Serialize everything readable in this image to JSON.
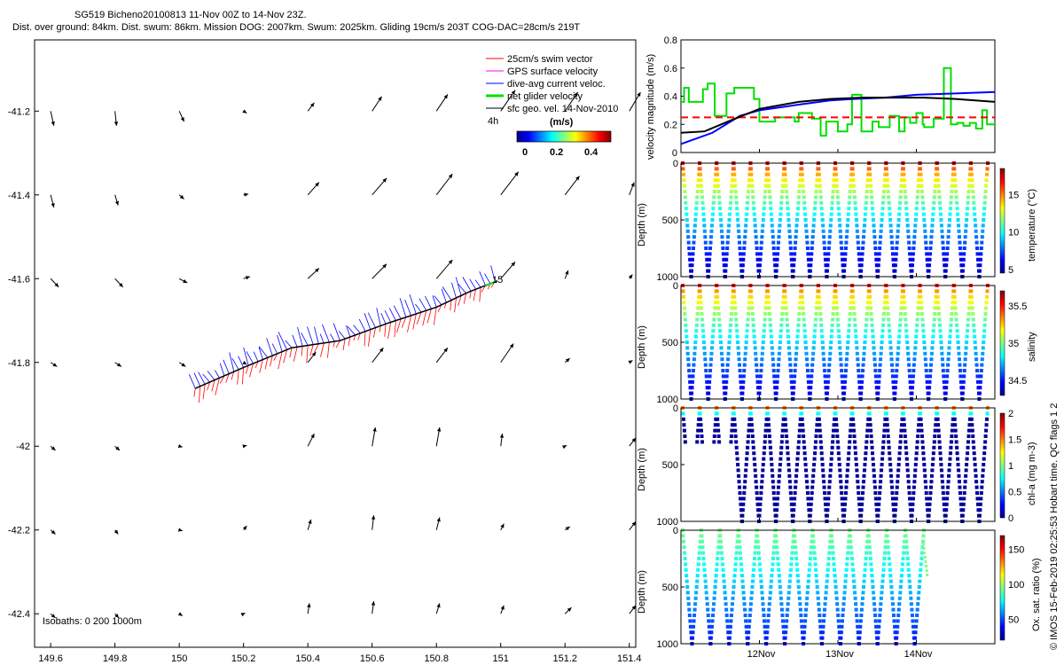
{
  "title_line1": "SG519 Bicheno20100813 11-Nov 00Z to 14-Nov 23Z.",
  "title_line2": "Dist. over ground: 84km. Dist. swum: 86km. Mission DOG: 2007km. Swum: 2025km. Gliding 19cm/s 203T COG-DAC=28cm/s 219T",
  "copyright": "© IMOS 15-Feb-2019 02:25:53 Hobart time. QC flags 1  2",
  "colors": {
    "swim": "#ff0000",
    "gps": "#ff00ff",
    "dac": "#0000ff",
    "net": "#00e000",
    "geo": "#000000"
  },
  "chart_data": [
    {
      "type": "scatter",
      "name": "map",
      "x_ticks": [
        "149.6",
        "149.8",
        "150",
        "150.2",
        "150.4",
        "150.6",
        "150.8",
        "151",
        "151.2",
        "151.4"
      ],
      "y_ticks": [
        "-41.2",
        "-41.4",
        "-41.6",
        "-41.8",
        "-42",
        "-42.2",
        "-42.4"
      ],
      "xlim": [
        149.55,
        151.42
      ],
      "ylim": [
        -42.48,
        -41.03
      ],
      "legend": [
        "25cm/s swim vector",
        "GPS surface velocity",
        "dive-avg current veloc.",
        "net glider velocity",
        "sfc geo. vel. 14-Nov-2010"
      ],
      "legend_time": "4h",
      "colorbar_label": "(m/s)",
      "colorbar_ticks": [
        "0",
        "0.2",
        "0.4"
      ],
      "isobaths_label": "Isobaths: 0   200  1000m",
      "end_label": "15",
      "track": [
        [
          150.05,
          -41.862
        ],
        [
          150.2,
          -41.812
        ],
        [
          150.35,
          -41.765
        ],
        [
          150.5,
          -41.748
        ],
        [
          150.65,
          -41.706
        ],
        [
          150.8,
          -41.668
        ],
        [
          150.9,
          -41.632
        ],
        [
          150.99,
          -41.605
        ]
      ],
      "geo_vectors": [
        [
          149.6,
          -41.2,
          0.01,
          -0.035
        ],
        [
          149.8,
          -41.2,
          0.005,
          -0.035
        ],
        [
          150,
          -41.2,
          0.015,
          -0.025
        ],
        [
          150.2,
          -41.2,
          0.01,
          -0.005
        ],
        [
          150.4,
          -41.2,
          0.02,
          0.02
        ],
        [
          150.6,
          -41.2,
          0.03,
          0.035
        ],
        [
          150.8,
          -41.2,
          0.035,
          0.04
        ],
        [
          151,
          -41.2,
          0.045,
          0.05
        ],
        [
          151.2,
          -41.2,
          0.04,
          0.045
        ],
        [
          151.4,
          -41.2,
          0.035,
          0.045
        ],
        [
          149.6,
          -41.4,
          0.01,
          -0.03
        ],
        [
          149.8,
          -41.4,
          0.01,
          -0.025
        ],
        [
          150,
          -41.4,
          0.015,
          -0.01
        ],
        [
          150.2,
          -41.4,
          0.015,
          0.002
        ],
        [
          150.4,
          -41.4,
          0.035,
          0.03
        ],
        [
          150.6,
          -41.4,
          0.045,
          0.04
        ],
        [
          150.8,
          -41.4,
          0.05,
          0.05
        ],
        [
          151,
          -41.4,
          0.055,
          0.055
        ],
        [
          151.2,
          -41.4,
          0.045,
          0.045
        ],
        [
          151.4,
          -41.4,
          0.015,
          0.03
        ],
        [
          149.6,
          -41.6,
          0.025,
          -0.02
        ],
        [
          149.8,
          -41.6,
          0.025,
          -0.02
        ],
        [
          150,
          -41.6,
          0.025,
          -0.01
        ],
        [
          150.2,
          -41.6,
          0.02,
          0.005
        ],
        [
          150.4,
          -41.6,
          0.035,
          0.025
        ],
        [
          150.6,
          -41.6,
          0.045,
          0.035
        ],
        [
          150.8,
          -41.6,
          0.05,
          0.045
        ],
        [
          151,
          -41.6,
          0.045,
          0.04
        ],
        [
          151.2,
          -41.6,
          0.01,
          0.02
        ],
        [
          151.4,
          -41.6,
          0.01,
          0.01
        ],
        [
          149.6,
          -41.8,
          0.02,
          -0.01
        ],
        [
          149.8,
          -41.8,
          0.02,
          -0.01
        ],
        [
          150,
          -41.8,
          0.02,
          -0.01
        ],
        [
          150.2,
          -41.8,
          0.01,
          -0.005
        ],
        [
          150.4,
          -41.8,
          0.025,
          0.025
        ],
        [
          150.6,
          -41.8,
          0.035,
          0.035
        ],
        [
          150.8,
          -41.8,
          0.035,
          0.035
        ],
        [
          151,
          -41.8,
          0.04,
          0.045
        ],
        [
          151.2,
          -41.8,
          0.015,
          0.01
        ],
        [
          151.4,
          -41.8,
          0.01,
          0.005
        ],
        [
          149.6,
          -42.0,
          0.015,
          -0.01
        ],
        [
          149.8,
          -42.0,
          0.015,
          -0.01
        ],
        [
          150,
          -42.0,
          0.01,
          -0.002
        ],
        [
          150.2,
          -42.0,
          0.01,
          0.002
        ],
        [
          150.4,
          -42.0,
          0.02,
          0.03
        ],
        [
          150.6,
          -42.0,
          0.01,
          0.045
        ],
        [
          150.8,
          -42.0,
          0.01,
          0.045
        ],
        [
          151,
          -42.0,
          0.005,
          0.03
        ],
        [
          151.2,
          -42.0,
          0.005,
          0.002
        ],
        [
          151.4,
          -42.0,
          0.02,
          0.02
        ],
        [
          149.6,
          -42.2,
          0.015,
          -0.01
        ],
        [
          149.8,
          -42.2,
          0.01,
          -0.01
        ],
        [
          150,
          -42.2,
          0.01,
          -0.002
        ],
        [
          150.2,
          -42.2,
          0.01,
          0.01
        ],
        [
          150.4,
          -42.2,
          0.01,
          0.025
        ],
        [
          150.6,
          -42.2,
          0.005,
          0.035
        ],
        [
          150.8,
          -42.2,
          0.01,
          0.03
        ],
        [
          151,
          -42.2,
          0.01,
          0.015
        ],
        [
          151.2,
          -42.2,
          0.015,
          0.008
        ],
        [
          151.4,
          -42.2,
          0.02,
          0.02
        ],
        [
          149.6,
          -42.4,
          0.015,
          -0.01
        ],
        [
          149.8,
          -42.4,
          0.012,
          -0.01
        ],
        [
          150,
          -42.4,
          0.01,
          -0.005
        ],
        [
          150.2,
          -42.4,
          0.005,
          0.002
        ],
        [
          150.4,
          -42.4,
          0.005,
          0.025
        ],
        [
          150.6,
          -42.4,
          0.005,
          0.03
        ],
        [
          150.8,
          -42.4,
          0.01,
          0.025
        ],
        [
          151,
          -42.4,
          0.01,
          0.02
        ],
        [
          151.2,
          -42.4,
          0.02,
          0.015
        ],
        [
          151.4,
          -42.4,
          0.02,
          0.02
        ]
      ]
    },
    {
      "type": "line",
      "name": "velocity",
      "ylabel": "velocity magnitude (m/s)",
      "ylim": [
        0,
        0.8
      ],
      "y_ticks": [
        "0",
        "0.2",
        "0.4",
        "0.6",
        "0.8"
      ],
      "xlim": [
        11,
        15
      ],
      "series": [
        {
          "color": "#00e000",
          "x": [
            11,
            11.04,
            11.04,
            11.1,
            11.1,
            11.28,
            11.28,
            11.34,
            11.34,
            11.43,
            11.43,
            11.58,
            11.58,
            11.68,
            11.68,
            11.93,
            11.93,
            12.0,
            12.0,
            12.2,
            12.2,
            12.45,
            12.45,
            12.5,
            12.5,
            12.67,
            12.67,
            12.78,
            12.78,
            12.85,
            12.85,
            13.0,
            13.0,
            13.12,
            13.12,
            13.18,
            13.18,
            13.3,
            13.3,
            13.44,
            13.44,
            13.52,
            13.52,
            13.66,
            13.66,
            13.78,
            13.78,
            13.85,
            13.85,
            13.92,
            13.92,
            14.0,
            14.0,
            14.08,
            14.08,
            14.1,
            14.1,
            14.22,
            14.22,
            14.35,
            14.35,
            14.44,
            14.44,
            14.52,
            14.52,
            14.6,
            14.6,
            14.68,
            14.68,
            14.76,
            14.76,
            14.84,
            14.84,
            14.9,
            14.9,
            15.0
          ],
          "values": [
            0.36,
            0.36,
            0.46,
            0.46,
            0.36,
            0.36,
            0.45,
            0.45,
            0.49,
            0.49,
            0.26,
            0.26,
            0.42,
            0.42,
            0.46,
            0.46,
            0.38,
            0.38,
            0.22,
            0.22,
            0.25,
            0.25,
            0.22,
            0.22,
            0.28,
            0.28,
            0.24,
            0.24,
            0.12,
            0.12,
            0.22,
            0.22,
            0.15,
            0.15,
            0.2,
            0.2,
            0.41,
            0.41,
            0.15,
            0.15,
            0.22,
            0.22,
            0.18,
            0.18,
            0.26,
            0.26,
            0.15,
            0.15,
            0.25,
            0.25,
            0.21,
            0.21,
            0.28,
            0.28,
            0.2,
            0.2,
            0.18,
            0.18,
            0.24,
            0.24,
            0.6,
            0.6,
            0.2,
            0.2,
            0.21,
            0.21,
            0.19,
            0.19,
            0.21,
            0.21,
            0.17,
            0.17,
            0.3,
            0.3,
            0.2,
            0.2
          ]
        },
        {
          "color": "#ff0000",
          "dashed": true,
          "x": [
            11,
            15
          ],
          "values": [
            0.25,
            0.25
          ]
        },
        {
          "color": "#0000ff",
          "x": [
            11,
            11.4,
            11.75,
            12.0,
            12.5,
            12.9,
            13.2,
            13.6,
            14.0,
            14.5,
            15.0
          ],
          "values": [
            0.06,
            0.14,
            0.26,
            0.3,
            0.34,
            0.37,
            0.38,
            0.39,
            0.41,
            0.42,
            0.43
          ]
        },
        {
          "color": "#000000",
          "x": [
            11,
            11.3,
            11.6,
            12.0,
            12.5,
            12.9,
            13.3,
            13.7,
            14.1,
            14.5,
            15.0
          ],
          "values": [
            0.14,
            0.15,
            0.22,
            0.31,
            0.36,
            0.38,
            0.39,
            0.39,
            0.39,
            0.38,
            0.36
          ]
        }
      ]
    },
    {
      "type": "scatter",
      "name": "temperature",
      "ylabel": "Depth (m)",
      "y_ticks": [
        "0",
        "500",
        "1000"
      ],
      "ylim": [
        1000,
        0
      ],
      "colorbar_label": "temperature (°C)",
      "colorbar_ticks": [
        "5",
        "10",
        "15"
      ],
      "colorbar_range": [
        4.5,
        18.5
      ],
      "dives": 18
    },
    {
      "type": "scatter",
      "name": "salinity",
      "ylabel": "Depth (m)",
      "y_ticks": [
        "0",
        "500",
        "1000"
      ],
      "ylim": [
        1000,
        0
      ],
      "colorbar_label": "salinity",
      "colorbar_ticks": [
        "34.5",
        "35",
        "35.5"
      ],
      "colorbar_range": [
        34.3,
        35.7
      ],
      "dives": 18
    },
    {
      "type": "scatter",
      "name": "chlorophyll",
      "ylabel": "Depth (m)",
      "y_ticks": [
        "0",
        "500",
        "1000"
      ],
      "ylim": [
        1000,
        0
      ],
      "colorbar_label": "chl-a (mg m-3)",
      "colorbar_ticks": [
        "0",
        "0.5",
        "1",
        "1.5",
        "2"
      ],
      "colorbar_range": [
        0,
        2
      ],
      "dives": 18
    },
    {
      "type": "scatter",
      "name": "oxygen",
      "ylabel": "Depth (m)",
      "y_ticks": [
        "0",
        "500",
        "1000"
      ],
      "ylim": [
        1000,
        0
      ],
      "colorbar_label": "Ox. sat. ratio (%)",
      "colorbar_ticks": [
        "50",
        "100",
        "150"
      ],
      "colorbar_range": [
        20,
        170
      ],
      "x_ticks": [
        "12Nov",
        "13Nov",
        "14Nov"
      ],
      "dives": 13
    }
  ]
}
